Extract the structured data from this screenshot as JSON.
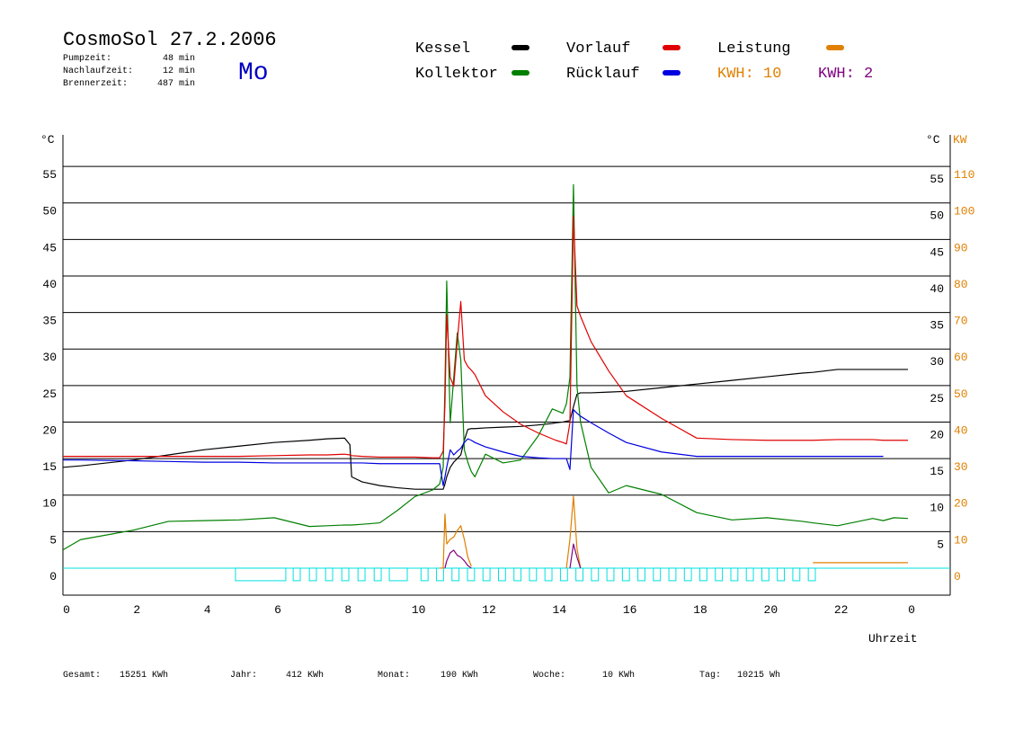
{
  "chart_data": {
    "type": "line",
    "title": "CosmoSol 27.2.2006",
    "day": "Mo",
    "info": [
      {
        "label": "Pumpzeit:",
        "value": "48 min"
      },
      {
        "label": "Nachlaufzeit:",
        "value": "12 min"
      },
      {
        "label": "Brennerzeit:",
        "value": "487 min"
      }
    ],
    "x_label": "Uhrzeit",
    "y_label": "°C",
    "y_label_right": "°C",
    "y2_label": "KW",
    "xlim": [
      0,
      25.2
    ],
    "xticks": [
      0,
      2,
      4,
      6,
      8,
      10,
      12,
      14,
      16,
      18,
      20,
      22,
      {
        "value": 24,
        "label": "0"
      }
    ],
    "ylim": [
      -3.7,
      58.7
    ],
    "yticks": [
      0,
      5,
      10,
      15,
      20,
      25,
      30,
      35,
      40,
      45,
      50,
      55
    ],
    "yticks_right": [
      5,
      10,
      15,
      20,
      25,
      30,
      35,
      40,
      45,
      50,
      55
    ],
    "y2lim": [
      -7.4,
      117.4
    ],
    "y2ticks": [
      0,
      10,
      20,
      30,
      40,
      50,
      60,
      70,
      80,
      90,
      100,
      110
    ],
    "grid": true,
    "grid_color": "#000000",
    "zero_line_color": "#00e0e0",
    "x": [
      0,
      0.5,
      2,
      3,
      4,
      5,
      6,
      7,
      7.5,
      8,
      8.15,
      8.2,
      8.5,
      9,
      9.5,
      10,
      10.5,
      10.7,
      10.8,
      10.85,
      10.9,
      11,
      11.1,
      11.2,
      11.3,
      11.4,
      11.5,
      11.6,
      11.7,
      12,
      12.5,
      13,
      13.5,
      13.9,
      14,
      14.2,
      14.3,
      14.4,
      14.5,
      14.6,
      14.7,
      15,
      15.5,
      16,
      17,
      18,
      19,
      20,
      21,
      21.3,
      22,
      23,
      23.3,
      23.6,
      24
    ],
    "series": [
      {
        "name": "Kessel",
        "color": "#000000",
        "values": [
          13.8,
          14.0,
          14.8,
          15.5,
          16.2,
          16.7,
          17.2,
          17.5,
          17.7,
          17.8,
          16.9,
          12.5,
          11.8,
          11.3,
          11.0,
          10.8,
          10.8,
          10.8,
          10.8,
          11.5,
          12.5,
          13.8,
          14.5,
          15.0,
          15.5,
          17.5,
          19.0,
          19.1,
          19.1,
          19.2,
          19.3,
          19.4,
          19.6,
          19.8,
          19.9,
          20.0,
          20.1,
          20.2,
          22.1,
          23.8,
          24.0,
          24.0,
          24.1,
          24.2,
          24.7,
          25.2,
          25.7,
          26.2,
          26.7,
          26.8,
          27.2,
          27.2,
          27.2,
          27.2,
          27.2
        ]
      },
      {
        "name": "Kollektor",
        "color": "#008000",
        "values": [
          2.5,
          3.9,
          5.2,
          6.4,
          6.5,
          6.6,
          6.9,
          5.7,
          5.8,
          5.9,
          5.9,
          5.9,
          6.0,
          6.2,
          7.9,
          9.8,
          10.7,
          11.5,
          13.8,
          25,
          39.3,
          19.9,
          26.1,
          32.2,
          28.5,
          16.2,
          14.5,
          13.2,
          12.5,
          15.6,
          14.4,
          14.8,
          18.1,
          21.8,
          21.6,
          21.2,
          22.5,
          26.1,
          52.5,
          24.9,
          20,
          13.8,
          10.3,
          11.3,
          10.1,
          7.6,
          6.6,
          6.9,
          6.4,
          6.2,
          5.8,
          6.8,
          6.5,
          6.9,
          6.8
        ]
      },
      {
        "name": "Vorlauf",
        "color": "#e00000",
        "values": [
          15.3,
          15.3,
          15.3,
          15.3,
          15.3,
          15.3,
          15.4,
          15.5,
          15.5,
          15.6,
          15.5,
          15.4,
          15.3,
          15.2,
          15.2,
          15.2,
          15.1,
          15.1,
          16.0,
          22.4,
          34.7,
          26.1,
          24.9,
          31.0,
          36.5,
          28.5,
          27.6,
          27.1,
          26.5,
          23.6,
          21.4,
          19.7,
          18.5,
          17.7,
          17.5,
          17.2,
          17.0,
          19.9,
          48.2,
          35.9,
          34.5,
          31.0,
          27,
          23.6,
          20.5,
          17.8,
          17.6,
          17.5,
          17.5,
          17.5,
          17.6,
          17.6,
          17.5,
          17.5,
          17.5
        ]
      },
      {
        "name": "Rücklauf",
        "color": "#0000e0",
        "values": [
          14.8,
          14.8,
          14.7,
          14.6,
          14.5,
          14.5,
          14.4,
          14.4,
          14.4,
          14.4,
          14.4,
          14.4,
          14.4,
          14.3,
          14.3,
          14.3,
          14.3,
          14.3,
          11.3,
          12.5,
          13.8,
          16.2,
          15.5,
          16,
          16.4,
          17.2,
          17.7,
          17.5,
          17.2,
          16.6,
          15.9,
          15.3,
          15.1,
          15.0,
          15.0,
          15.0,
          15.0,
          13.5,
          21.7,
          21.2,
          20.8,
          19.9,
          18.5,
          17.2,
          15.9,
          15.3,
          15.3,
          15.3,
          15.3,
          15.3,
          15.3,
          15.3,
          15.3,
          null,
          null
        ]
      },
      {
        "name": "Leistung",
        "color": "#e08000",
        "axis": "y2",
        "values": [
          null,
          null,
          null,
          null,
          null,
          null,
          null,
          null,
          null,
          null,
          null,
          null,
          null,
          null,
          null,
          null,
          null,
          0,
          0,
          14.8,
          6.6,
          7.9,
          8.5,
          10.3,
          11.6,
          7.9,
          3,
          0.5,
          null,
          null,
          null,
          null,
          null,
          null,
          null,
          null,
          0,
          7.9,
          19.7,
          5.4,
          0,
          null,
          null,
          null,
          null,
          null,
          null,
          null,
          null,
          1.5,
          1.5,
          1.5,
          1.5,
          1.5,
          1.5
        ]
      },
      {
        "color": "#800080",
        "axis": "y2",
        "values": [
          null,
          null,
          null,
          null,
          null,
          null,
          null,
          null,
          null,
          null,
          null,
          null,
          null,
          null,
          null,
          null,
          null,
          null,
          null,
          0,
          2.0,
          4.2,
          4.9,
          3.5,
          3.0,
          2.0,
          0.7,
          0,
          null,
          null,
          null,
          null,
          null,
          null,
          null,
          null,
          null,
          0,
          6.6,
          3.0,
          0,
          null,
          null,
          null,
          null,
          null,
          null,
          null,
          null,
          null,
          null,
          null,
          null,
          null,
          null
        ]
      }
    ],
    "kwh": [
      {
        "label": "KWH:",
        "value": 10,
        "color": "#e08000"
      },
      {
        "label": "KWH:",
        "value": 2,
        "color": "#800080"
      }
    ],
    "pump_color": "#00e0e0",
    "pump": [
      [
        4.9,
        6.33
      ],
      [
        6.54,
        6.74
      ],
      [
        7.0,
        7.2
      ],
      [
        7.46,
        7.66
      ],
      [
        7.92,
        8.12
      ],
      [
        8.38,
        8.58
      ],
      [
        8.84,
        9.04
      ],
      [
        9.27,
        9.78
      ],
      [
        10.17,
        10.37
      ],
      [
        10.61,
        10.81
      ],
      [
        11.05,
        11.25
      ],
      [
        11.49,
        11.69
      ],
      [
        11.93,
        12.13
      ],
      [
        12.37,
        12.57
      ],
      [
        12.81,
        13.01
      ],
      [
        13.25,
        13.45
      ],
      [
        13.69,
        13.89
      ],
      [
        14.13,
        14.33
      ],
      [
        14.57,
        14.77
      ],
      [
        15.01,
        15.21
      ],
      [
        15.45,
        15.65
      ],
      [
        15.89,
        16.09
      ],
      [
        16.33,
        16.53
      ],
      [
        16.77,
        16.97
      ],
      [
        17.21,
        17.41
      ],
      [
        17.65,
        17.85
      ],
      [
        18.09,
        18.29
      ],
      [
        18.53,
        18.73
      ],
      [
        18.97,
        19.17
      ],
      [
        19.41,
        19.61
      ],
      [
        19.85,
        20.05
      ],
      [
        20.29,
        20.49
      ],
      [
        20.73,
        20.93
      ],
      [
        21.17,
        21.37
      ]
    ],
    "totals": [
      {
        "label": "Gesamt:",
        "value": "15251 KWh"
      },
      {
        "label": "Jahr:",
        "value": "412 KWh"
      },
      {
        "label": "Monat:",
        "value": "190 KWh"
      },
      {
        "label": "Woche:",
        "value": "10 KWh"
      },
      {
        "label": "Tag:",
        "value": "10215 Wh"
      }
    ]
  }
}
